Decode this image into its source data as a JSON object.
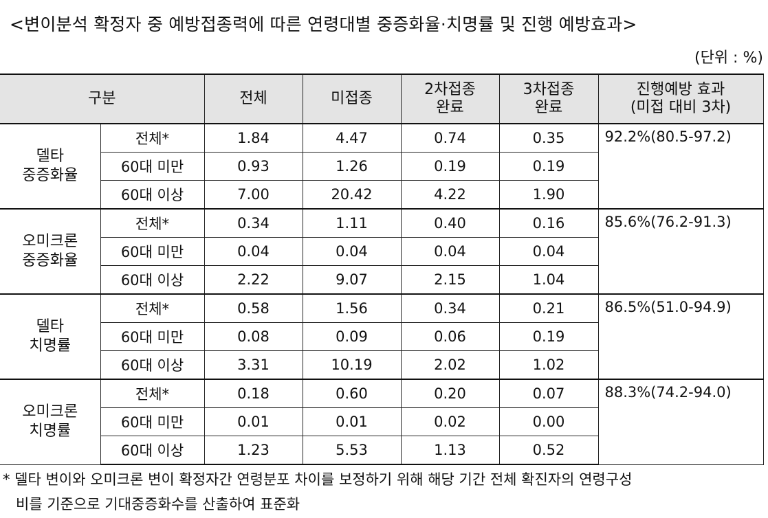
{
  "title": "<변이분석 확정자 중 예방접종력에 따른 연령대별 중증화율·치명률 및 진행 예방효과>",
  "unit": "(단위 : %)",
  "headers": {
    "category": "구분",
    "total": "전체",
    "unvaccinated": "미접종",
    "dose2_line1": "2차접종",
    "dose2_line2": "완료",
    "dose3_line1": "3차접종",
    "dose3_line2": "완료",
    "effect_line1": "진행예방 효과",
    "effect_line2": "(미접 대비 3차)"
  },
  "groups": [
    {
      "label_line1": "델타",
      "label_line2": "중증화율",
      "effect": "92.2%(80.5-97.2)",
      "rows": [
        {
          "age": "전체*",
          "total": "1.84",
          "unvax": "4.47",
          "dose2": "0.74",
          "dose3": "0.35"
        },
        {
          "age": "60대 미만",
          "total": "0.93",
          "unvax": "1.26",
          "dose2": "0.19",
          "dose3": "0.19"
        },
        {
          "age": "60대 이상",
          "total": "7.00",
          "unvax": "20.42",
          "dose2": "4.22",
          "dose3": "1.90"
        }
      ]
    },
    {
      "label_line1": "오미크론",
      "label_line2": "중증화율",
      "effect": "85.6%(76.2-91.3)",
      "rows": [
        {
          "age": "전체*",
          "total": "0.34",
          "unvax": "1.11",
          "dose2": "0.40",
          "dose3": "0.16"
        },
        {
          "age": "60대 미만",
          "total": "0.04",
          "unvax": "0.04",
          "dose2": "0.04",
          "dose3": "0.04"
        },
        {
          "age": "60대 이상",
          "total": "2.22",
          "unvax": "9.07",
          "dose2": "2.15",
          "dose3": "1.04"
        }
      ]
    },
    {
      "label_line1": "델타",
      "label_line2": "치명률",
      "effect": "86.5%(51.0-94.9)",
      "rows": [
        {
          "age": "전체*",
          "total": "0.58",
          "unvax": "1.56",
          "dose2": "0.34",
          "dose3": "0.21"
        },
        {
          "age": "60대 미만",
          "total": "0.08",
          "unvax": "0.09",
          "dose2": "0.06",
          "dose3": "0.19"
        },
        {
          "age": "60대 이상",
          "total": "3.31",
          "unvax": "10.19",
          "dose2": "2.02",
          "dose3": "1.02"
        }
      ]
    },
    {
      "label_line1": "오미크론",
      "label_line2": "치명률",
      "effect": "88.3%(74.2-94.0)",
      "rows": [
        {
          "age": "전체*",
          "total": "0.18",
          "unvax": "0.60",
          "dose2": "0.20",
          "dose3": "0.07"
        },
        {
          "age": "60대 미만",
          "total": "0.01",
          "unvax": "0.01",
          "dose2": "0.02",
          "dose3": "0.00"
        },
        {
          "age": "60대 이상",
          "total": "1.23",
          "unvax": "5.53",
          "dose2": "1.13",
          "dose3": "0.52"
        }
      ]
    }
  ],
  "footnote": {
    "line1": "* 델타 변이와 오미크론 변이 확정자간 연령분포 차이를 보정하기 위해 해당 기간 전체 확진자의 연령구성",
    "line2": "비를 기준으로 기대중증화수를 산출하여 표준화"
  }
}
